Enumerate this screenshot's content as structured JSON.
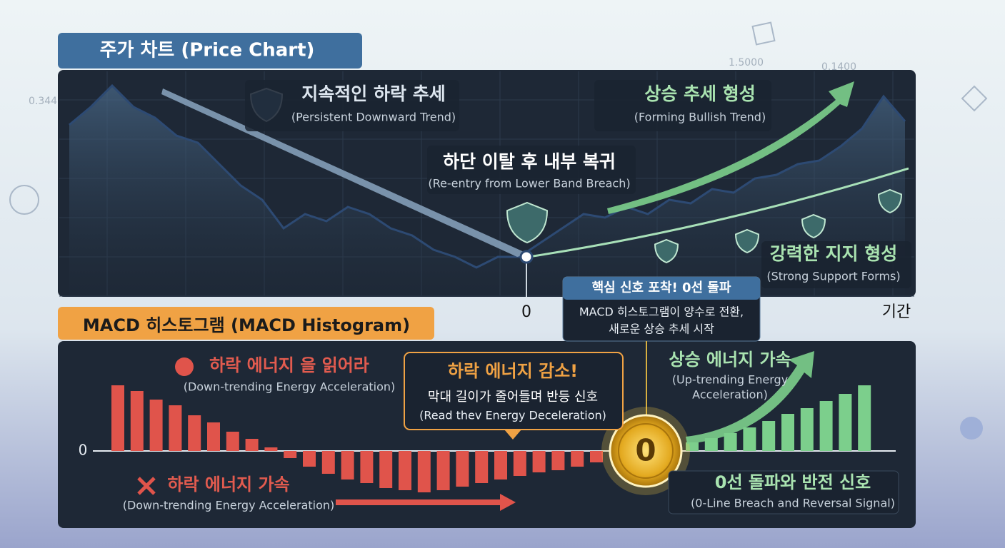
{
  "background_labels": [
    "0.344",
    "1.5000",
    "0.1400"
  ],
  "price_chart": {
    "title": "주가 차트 (Price Chart)",
    "x_label": "기간",
    "zero_label": "0",
    "values": [
      225,
      250,
      280,
      250,
      235,
      210,
      200,
      170,
      140,
      120,
      80,
      100,
      90,
      110,
      100,
      80,
      70,
      50,
      40,
      25,
      40,
      40,
      60,
      80,
      100,
      95,
      110,
      100,
      120,
      115,
      135,
      130,
      150,
      155,
      170,
      175,
      195,
      220,
      265,
      230
    ],
    "annotations": [
      {
        "lines": [
          "지속적인 하락 추세",
          "(Persistent Downward Trend)"
        ]
      },
      {
        "lines": [
          "상승 추세 형성",
          "(Forming Bullish Trend)"
        ]
      },
      {
        "lines": [
          "하단 이탈 후 내부 복귀",
          "(Re-entry from Lower Band Breach)"
        ]
      },
      {
        "lines": [
          "강력한 지지 형성",
          "(Strong Support Forms)"
        ]
      }
    ]
  },
  "signal_box": {
    "title": "핵심 신호 포착! 0선 돌파",
    "lines": [
      "MACD 히스토그램이 양수로 전환,",
      "새로운 상승 추세 시작"
    ]
  },
  "macd": {
    "title": "MACD 히스토그램 (MACD Histogram)",
    "zero_label": "0",
    "coin_label": "0",
    "bars": [
      {
        "color": "#e0544b",
        "values": [
          92,
          84,
          72,
          64,
          50,
          40,
          27,
          17,
          5,
          -10,
          -22,
          -32,
          -40,
          -45,
          -52,
          -55,
          -58,
          -55,
          -50,
          -45,
          -40,
          -35,
          -30,
          -27,
          -22,
          -16
        ]
      },
      {
        "color": "#7ccf8c",
        "values": [
          -6,
          -3,
          3,
          8,
          12,
          18,
          25,
          33,
          42,
          52,
          60,
          70,
          80,
          92
        ]
      }
    ],
    "annotations": [
      {
        "lines": [
          "하락 에너지 을 읽어라",
          "(Down-trending Energy Acceleration)"
        ]
      },
      {
        "lines": [
          "하락 에너지 감소!",
          "막대 길이가 줄어들며 반등 신호",
          "(Read thev Energy Deceleration)"
        ]
      },
      {
        "lines": [
          "상승 에너지 가속",
          "(Up-trending Energy",
          "Acceleration)"
        ]
      },
      {
        "lines": [
          "하락 에너지 가속",
          "(Down-trending Energy Acceleration)"
        ]
      },
      {
        "lines": [
          "0선 돌파와 반전 신호",
          "(0-Line Breach and Reversal Signal)"
        ]
      }
    ]
  }
}
